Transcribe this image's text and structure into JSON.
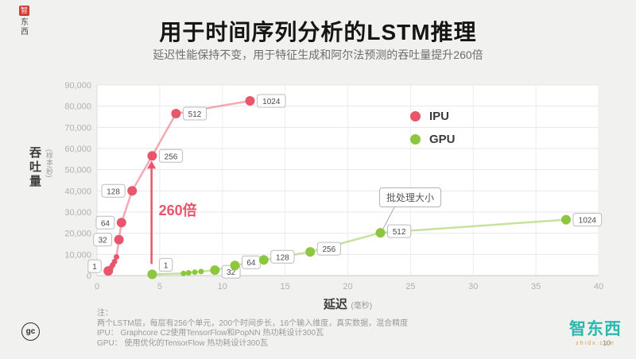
{
  "page": {
    "title": "用于时间序列分析的LSTM推理",
    "subtitle": "延迟性能保持不变，用于特征生成和阿尔法预测的吞吐量提升260倍",
    "page_number": "10"
  },
  "watermark": {
    "top_left_chars": [
      "智",
      "东",
      "西"
    ],
    "gc_logo": "gc",
    "bottom_logo": "智东西",
    "bottom_logo_sub": "zhidx.com"
  },
  "notes": {
    "heading": "注：",
    "lines": [
      "两个LSTM层，每层有256个单元，200个时间步长，16个输入维度，真实数据，混合精度",
      "IPU： Graphcore C2使用TensorFlow和PopNN 热功耗设计300瓦",
      "GPU： 使用优化的TensorFlow 热功耗设计300瓦"
    ]
  },
  "chart_data": {
    "type": "line",
    "title": "用于时间序列分析的LSTM推理",
    "xlabel": "延迟",
    "xlabel_unit": "(毫秒)",
    "ylabel": "吞吐量",
    "ylabel_unit": "(样本/秒)",
    "xlim": [
      0,
      40
    ],
    "ylim": [
      0,
      90000
    ],
    "xticks": [
      0,
      5,
      10,
      15,
      20,
      25,
      30,
      35,
      40
    ],
    "yticks": [
      0,
      10000,
      20000,
      30000,
      40000,
      50000,
      60000,
      70000,
      80000,
      90000
    ],
    "grid": true,
    "legend_position": "top-right",
    "annotations": {
      "speedup_label": "260倍",
      "callout_label": "批处理大小"
    },
    "series": [
      {
        "name": "IPU",
        "color": "#e8566b",
        "points": [
          {
            "x": 0.9,
            "y": 2200,
            "label": "1",
            "side": "left",
            "dy": -6
          },
          {
            "x": 1.1,
            "y": 3600
          },
          {
            "x": 1.25,
            "y": 5000
          },
          {
            "x": 1.4,
            "y": 6600
          },
          {
            "x": 1.55,
            "y": 8800
          },
          {
            "x": 1.75,
            "y": 17000,
            "label": "32",
            "side": "left"
          },
          {
            "x": 1.95,
            "y": 25000,
            "label": "64",
            "side": "left"
          },
          {
            "x": 2.8,
            "y": 40000,
            "label": "128",
            "side": "left"
          },
          {
            "x": 4.4,
            "y": 56500,
            "label": "256",
            "side": "right"
          },
          {
            "x": 6.3,
            "y": 76500,
            "label": "512",
            "side": "right"
          },
          {
            "x": 12.2,
            "y": 82500,
            "label": "1024",
            "side": "right"
          }
        ]
      },
      {
        "name": "GPU",
        "color": "#8dc63f",
        "points": [
          {
            "x": 4.4,
            "y": 600,
            "label": "1",
            "side": "right",
            "dy": -12
          },
          {
            "x": 6.9,
            "y": 1000
          },
          {
            "x": 7.3,
            "y": 1300
          },
          {
            "x": 7.8,
            "y": 1600
          },
          {
            "x": 8.3,
            "y": 1900
          },
          {
            "x": 9.4,
            "y": 2600,
            "label": "32",
            "side": "right",
            "dy": 2
          },
          {
            "x": 11.0,
            "y": 4800,
            "label": "64",
            "side": "right",
            "dy": -4
          },
          {
            "x": 13.3,
            "y": 7400,
            "label": "128",
            "side": "right",
            "dy": -4
          },
          {
            "x": 17.0,
            "y": 11200,
            "label": "256",
            "side": "right",
            "dy": -4
          },
          {
            "x": 22.6,
            "y": 20200,
            "label": "512",
            "side": "right",
            "dy": -2
          },
          {
            "x": 37.4,
            "y": 26400,
            "label": "1024",
            "side": "right"
          }
        ]
      }
    ]
  }
}
